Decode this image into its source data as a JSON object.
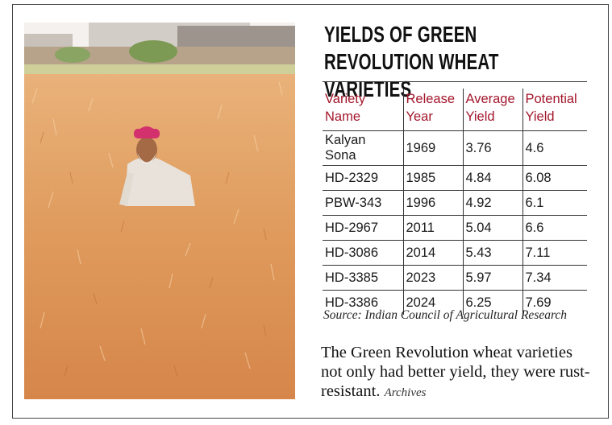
{
  "title": "YIELDS OF GREEN REVOLUTION WHEAT VARIETIES",
  "table": {
    "header": [
      "Variety Name",
      "Release Year",
      "Average Yield",
      "Potential Yield"
    ],
    "rows": [
      [
        "Kalyan Sona",
        1969,
        3.76,
        4.6
      ],
      [
        "HD-2329",
        1985,
        4.84,
        6.08
      ],
      [
        "PBW-343",
        1996,
        4.92,
        6.1
      ],
      [
        "HD-2967",
        2011,
        5.04,
        6.6
      ],
      [
        "HD-3086",
        2014,
        5.43,
        7.11
      ],
      [
        "HD-3385",
        2023,
        5.97,
        7.34
      ],
      [
        "HD-3386",
        2024,
        6.25,
        7.69
      ]
    ]
  },
  "source": "Source: Indian Council of Agricultural Research",
  "caption": {
    "text": "The Green Revolution wheat varieties not only had better yield, they were rust-resistant.",
    "credit": "Archives"
  }
}
